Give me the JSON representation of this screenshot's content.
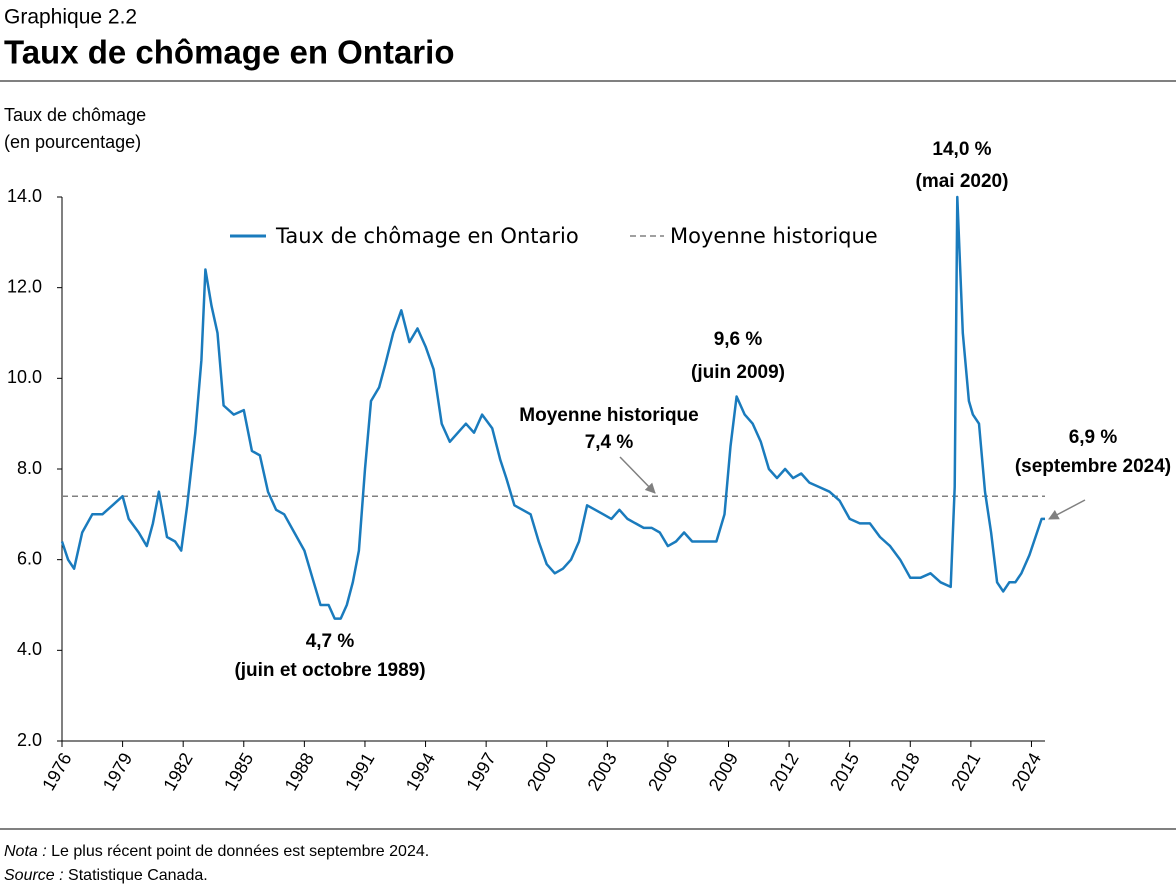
{
  "header": {
    "label": "Graphique 2.2",
    "title": "Taux de chômage en Ontario"
  },
  "chart_data": {
    "type": "line",
    "y_label": [
      "Taux de chômage",
      "(en pourcentage)"
    ],
    "x": [
      1976.0,
      1976.3,
      1976.6,
      1977.0,
      1977.5,
      1978.0,
      1978.5,
      1979.0,
      1979.3,
      1979.8,
      1980.2,
      1980.5,
      1980.8,
      1981.2,
      1981.6,
      1981.9,
      1982.2,
      1982.6,
      1982.9,
      1983.1,
      1983.4,
      1983.7,
      1984.0,
      1984.5,
      1985.0,
      1985.4,
      1985.8,
      1986.2,
      1986.6,
      1987.0,
      1987.5,
      1988.0,
      1988.4,
      1988.8,
      1989.2,
      1989.5,
      1989.8,
      1990.1,
      1990.4,
      1990.7,
      1991.0,
      1991.3,
      1991.7,
      1992.0,
      1992.4,
      1992.8,
      1993.2,
      1993.6,
      1994.0,
      1994.4,
      1994.8,
      1995.2,
      1995.6,
      1996.0,
      1996.4,
      1996.8,
      1997.3,
      1997.7,
      1998.0,
      1998.4,
      1998.8,
      1999.2,
      1999.6,
      2000.0,
      2000.4,
      2000.8,
      2001.2,
      2001.6,
      2002.0,
      2002.4,
      2002.8,
      2003.2,
      2003.6,
      2004.0,
      2004.4,
      2004.8,
      2005.2,
      2005.6,
      2006.0,
      2006.4,
      2006.8,
      2007.2,
      2007.6,
      2008.0,
      2008.4,
      2008.8,
      2009.1,
      2009.4,
      2009.8,
      2010.2,
      2010.6,
      2011.0,
      2011.4,
      2011.8,
      2012.2,
      2012.6,
      2013.0,
      2013.5,
      2014.0,
      2014.5,
      2015.0,
      2015.5,
      2016.0,
      2016.5,
      2017.0,
      2017.5,
      2018.0,
      2018.5,
      2019.0,
      2019.5,
      2020.0,
      2020.2,
      2020.33,
      2020.6,
      2020.9,
      2021.1,
      2021.4,
      2021.7,
      2022.0,
      2022.3,
      2022.6,
      2022.9,
      2023.2,
      2023.5,
      2023.9,
      2024.2,
      2024.5,
      2024.67
    ],
    "series": [
      {
        "name": "Taux de chômage en Ontario",
        "color": "#1a7bbd",
        "values": [
          6.4,
          6.0,
          5.8,
          6.6,
          7.0,
          7.0,
          7.2,
          7.4,
          6.9,
          6.6,
          6.3,
          6.8,
          7.5,
          6.5,
          6.4,
          6.2,
          7.2,
          8.8,
          10.4,
          12.4,
          11.6,
          11.0,
          9.4,
          9.2,
          9.3,
          8.4,
          8.3,
          7.5,
          7.1,
          7.0,
          6.6,
          6.2,
          5.6,
          5.0,
          5.0,
          4.7,
          4.7,
          5.0,
          5.5,
          6.2,
          8.0,
          9.5,
          9.8,
          10.3,
          11.0,
          11.5,
          10.8,
          11.1,
          10.7,
          10.2,
          9.0,
          8.6,
          8.8,
          9.0,
          8.8,
          9.2,
          8.9,
          8.2,
          7.8,
          7.2,
          7.1,
          7.0,
          6.4,
          5.9,
          5.7,
          5.8,
          6.0,
          6.4,
          7.2,
          7.1,
          7.0,
          6.9,
          7.1,
          6.9,
          6.8,
          6.7,
          6.7,
          6.6,
          6.3,
          6.4,
          6.6,
          6.4,
          6.4,
          6.4,
          6.4,
          7.0,
          8.5,
          9.6,
          9.2,
          9.0,
          8.6,
          8.0,
          7.8,
          8.0,
          7.8,
          7.9,
          7.7,
          7.6,
          7.5,
          7.3,
          6.9,
          6.8,
          6.8,
          6.5,
          6.3,
          6.0,
          5.6,
          5.6,
          5.7,
          5.5,
          5.4,
          7.6,
          14.0,
          11.0,
          9.5,
          9.2,
          9.0,
          7.5,
          6.6,
          5.5,
          5.3,
          5.5,
          5.5,
          5.7,
          6.1,
          6.5,
          6.9,
          6.9
        ]
      }
    ],
    "average": {
      "name": "Moyenne historique",
      "value": 7.4,
      "color": "#808080"
    },
    "xlim": [
      1976,
      2024.67
    ],
    "xticks": [
      1976,
      1979,
      1982,
      1985,
      1988,
      1991,
      1994,
      1997,
      2000,
      2003,
      2006,
      2009,
      2012,
      2015,
      2018,
      2021,
      2024
    ],
    "ylim": [
      2,
      14
    ],
    "yticks": [
      {
        "value": 2,
        "label": "2.0"
      },
      {
        "value": 4,
        "label": "4.0"
      },
      {
        "value": 6,
        "label": "6.0"
      },
      {
        "value": 8,
        "label": "8.0"
      },
      {
        "value": 10,
        "label": "10.0"
      },
      {
        "value": 12,
        "label": "12.0"
      },
      {
        "value": 14,
        "label": "14.0"
      }
    ],
    "annotations": [
      [
        "14,0 %",
        "(mai 2020)"
      ],
      [
        "9,6 %",
        "(juin 2009)"
      ],
      [
        "Moyenne historique",
        "7,4 %"
      ],
      [
        "6,9 %",
        "(septembre 2024)"
      ],
      [
        "4,7 %",
        "(juin et octobre 1989)"
      ]
    ]
  },
  "notes": [
    {
      "label": "Nota :",
      "text": "Le plus récent point de données est septembre 2024."
    },
    {
      "label": "Source :",
      "text": "Statistique Canada."
    }
  ]
}
